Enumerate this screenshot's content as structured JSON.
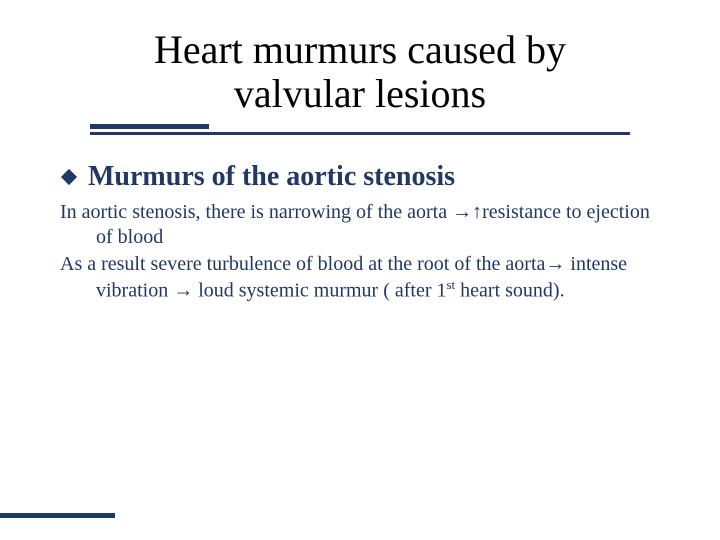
{
  "colors": {
    "text_primary": "#203864",
    "title": "#000000",
    "background": "#ffffff",
    "accent_bar": "#203864"
  },
  "typography": {
    "title_fontsize": 40,
    "subtitle_fontsize": 28,
    "body_fontsize": 20,
    "font_family": "Times New Roman"
  },
  "layout": {
    "underline_short_width_pct": 22,
    "underline_long_width_pct": 100,
    "footer_bar_width_pct": 16
  },
  "title": "Heart murmurs caused by valvular lesions",
  "subtitle": "Murmurs of the aortic stenosis",
  "paragraphs": [
    {
      "pre": "In aortic stenosis, there is narrowing of the aorta ",
      "arrow1": "→",
      "up": "↑",
      "post": "resistance to ejection of blood"
    },
    {
      "pre": "As a result severe turbulence of blood at the root of the aorta",
      "arrow1": "→",
      "mid": " intense vibration ",
      "arrow2": "→",
      "post_pre": " loud systemic murmur ( after 1",
      "sup": "st",
      "post_post": " heart sound)."
    }
  ]
}
